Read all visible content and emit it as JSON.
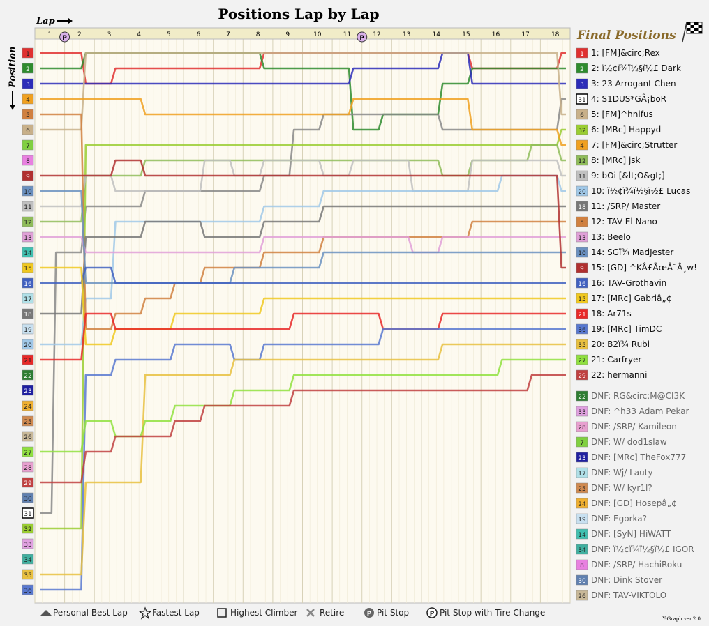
{
  "title": "Positions Lap by Lap",
  "lap_label": "Lap",
  "position_label": "Position",
  "final_positions_title": "Final Positions",
  "version": "Y-Graph ver.2.0",
  "chart_data": {
    "type": "line",
    "title": "Positions Lap by Lap",
    "xlabel": "Lap",
    "ylabel": "Position",
    "laps": [
      1,
      2,
      3,
      4,
      5,
      6,
      7,
      8,
      9,
      10,
      11,
      12,
      13,
      14,
      15,
      16,
      17,
      18
    ],
    "y_range": [
      1,
      36
    ],
    "position_labels": [
      "1",
      "2",
      "3",
      "4",
      "5",
      "6",
      "7",
      "8",
      "9",
      "10",
      "11",
      "12",
      "13",
      "14",
      "15",
      "16",
      "17",
      "18",
      "19",
      "20",
      "21",
      "22",
      "23",
      "24",
      "25",
      "26",
      "27",
      "28",
      "29",
      "30",
      "31",
      "32",
      "33",
      "34",
      "35",
      "36"
    ],
    "series": [
      {
        "id": 1,
        "name": "[FM]&circ;Rex",
        "color": "#e03030",
        "positions": [
          1,
          3,
          2,
          2,
          2,
          2,
          2,
          1,
          1,
          1,
          1,
          1,
          1,
          1,
          2,
          2,
          2,
          1
        ]
      },
      {
        "id": 2,
        "name": "ï½¢ï¾ï½§ï½£ Dark",
        "color": "#2e8b2e",
        "positions": [
          2,
          1,
          1,
          1,
          1,
          1,
          1,
          2,
          2,
          2,
          6,
          5,
          5,
          3,
          2,
          2,
          2,
          2
        ]
      },
      {
        "id": 3,
        "name": "23 Arrogant Chen",
        "color": "#2b2bb8",
        "positions": [
          3,
          3,
          3,
          3,
          3,
          3,
          3,
          3,
          3,
          3,
          2,
          2,
          2,
          1,
          3,
          3,
          3,
          3
        ]
      },
      {
        "id": 31,
        "name": "S1DUS*GÃ¡boR",
        "color": "#888888",
        "positions": [
          14,
          11,
          11,
          10,
          10,
          10,
          10,
          9,
          6,
          5,
          5,
          5,
          5,
          6,
          6,
          6,
          6,
          4
        ]
      },
      {
        "id": 6,
        "name": "[FM]^hnifus",
        "color": "#c8b08a",
        "positions": [
          6,
          1,
          1,
          1,
          1,
          1,
          1,
          1,
          1,
          1,
          1,
          1,
          1,
          1,
          1,
          1,
          1,
          5
        ]
      },
      {
        "id": 32,
        "name": "[MRc] Happyd",
        "color": "#9acd32",
        "positions": [
          32,
          7,
          7,
          7,
          7,
          7,
          7,
          7,
          7,
          7,
          7,
          7,
          7,
          7,
          7,
          7,
          7,
          6
        ]
      },
      {
        "id": 4,
        "name": "[FM]&circ;Strutter",
        "color": "#f0a020",
        "positions": [
          4,
          4,
          4,
          5,
          5,
          5,
          5,
          5,
          5,
          5,
          4,
          4,
          4,
          4,
          6,
          6,
          6,
          7
        ]
      },
      {
        "id": 12,
        "name": "[MRc] jsk",
        "color": "#8fbc5a",
        "positions": [
          12,
          9,
          9,
          8,
          8,
          8,
          8,
          8,
          8,
          8,
          8,
          8,
          8,
          9,
          8,
          8,
          7,
          8
        ]
      },
      {
        "id": 11,
        "name": "bOi [&lt;O&gt;]",
        "color": "#c0c0c0",
        "positions": [
          11,
          9,
          10,
          10,
          10,
          8,
          9,
          8,
          8,
          9,
          8,
          8,
          10,
          10,
          8,
          8,
          8,
          9
        ]
      },
      {
        "id": 20,
        "name": "ï½¢ï¾ï½§ï½£ Lucas",
        "color": "#a0c8e8",
        "positions": [
          20,
          17,
          12,
          12,
          12,
          12,
          12,
          11,
          11,
          10,
          10,
          10,
          10,
          10,
          10,
          9,
          9,
          10
        ]
      },
      {
        "id": 18,
        "name": "/SRP/ Master",
        "color": "#777777",
        "positions": [
          18,
          13,
          13,
          12,
          12,
          13,
          13,
          12,
          12,
          11,
          11,
          11,
          11,
          11,
          11,
          11,
          11,
          11
        ]
      },
      {
        "id": 5,
        "name": "TAV-El Nano",
        "color": "#d08040",
        "positions": [
          5,
          19,
          18,
          17,
          16,
          15,
          15,
          14,
          14,
          13,
          13,
          13,
          13,
          13,
          12,
          12,
          12,
          12
        ]
      },
      {
        "id": 13,
        "name": "Beelo",
        "color": "#e0a0d8",
        "positions": [
          13,
          14,
          14,
          14,
          14,
          14,
          14,
          13,
          13,
          13,
          13,
          13,
          14,
          13,
          13,
          13,
          13,
          13
        ]
      },
      {
        "id": 10,
        "name": "SGï¾ MadJester",
        "color": "#6a90c0",
        "positions": [
          10,
          16,
          16,
          16,
          16,
          16,
          15,
          15,
          15,
          14,
          14,
          14,
          14,
          14,
          14,
          14,
          14,
          14
        ]
      },
      {
        "id": 9,
        "name": "[GD] ^KÂ£ÃœÂ¨Â¸w!",
        "color": "#b03030",
        "positions": [
          9,
          9,
          8,
          9,
          9,
          9,
          9,
          9,
          9,
          9,
          9,
          9,
          9,
          9,
          9,
          9,
          9,
          15
        ]
      },
      {
        "id": 16,
        "name": "TAV-Grothavin",
        "color": "#4060c0",
        "positions": [
          16,
          15,
          16,
          16,
          16,
          16,
          16,
          16,
          16,
          16,
          16,
          16,
          16,
          16,
          16,
          16,
          16,
          16
        ]
      },
      {
        "id": 15,
        "name": "[MRc] Gabriâ„¢",
        "color": "#f0c820",
        "positions": [
          15,
          20,
          19,
          19,
          18,
          18,
          18,
          17,
          17,
          17,
          17,
          17,
          17,
          17,
          17,
          17,
          17,
          17
        ]
      },
      {
        "id": 21,
        "name": "Ar71s",
        "color": "#e82828",
        "positions": [
          21,
          18,
          19,
          19,
          19,
          19,
          19,
          19,
          18,
          18,
          18,
          19,
          19,
          18,
          18,
          18,
          18,
          18
        ]
      },
      {
        "id": 36,
        "name": "[MRc] TimDC",
        "color": "#5878d0",
        "positions": [
          36,
          22,
          21,
          21,
          20,
          20,
          21,
          20,
          20,
          20,
          20,
          19,
          19,
          19,
          19,
          19,
          19,
          19
        ]
      },
      {
        "id": 35,
        "name": "B2ï¾ Rubi",
        "color": "#e8c040",
        "positions": [
          35,
          29,
          29,
          22,
          22,
          22,
          21,
          21,
          21,
          21,
          21,
          21,
          21,
          20,
          20,
          20,
          20,
          20
        ]
      },
      {
        "id": 27,
        "name": "Carfryer",
        "color": "#90e040",
        "positions": [
          27,
          25,
          26,
          25,
          24,
          24,
          23,
          23,
          22,
          22,
          22,
          22,
          22,
          22,
          22,
          21,
          21,
          21
        ]
      },
      {
        "id": 29,
        "name": "hermanni",
        "color": "#c04040",
        "positions": [
          29,
          27,
          26,
          26,
          25,
          24,
          24,
          24,
          23,
          23,
          23,
          23,
          23,
          23,
          23,
          23,
          22,
          22
        ]
      }
    ],
    "pit_stop_laps_marked": [
      1,
      11
    ]
  },
  "final_positions": [
    {
      "badge": "1",
      "badge_color": "#e03030",
      "text": "1: [FM]&circ;Rex"
    },
    {
      "badge": "2",
      "badge_color": "#2e8b2e",
      "text": "2: ï½¢ï¾ï½§ï½£ Dark"
    },
    {
      "badge": "3",
      "badge_color": "#2b2bb8",
      "text": "3: 23 Arrogant Chen"
    },
    {
      "badge": "31",
      "badge_color": "#ffffff",
      "text": "4: S1DUS*GÃ¡boR"
    },
    {
      "badge": "6",
      "badge_color": "#c8b08a",
      "text": "5: [FM]^hnifus"
    },
    {
      "badge": "32",
      "badge_color": "#9acd32",
      "text": "6: [MRc] Happyd"
    },
    {
      "badge": "4",
      "badge_color": "#f0a020",
      "text": "7: [FM]&circ;Strutter"
    },
    {
      "badge": "12",
      "badge_color": "#8fbc5a",
      "text": "8: [MRc] jsk"
    },
    {
      "badge": "11",
      "badge_color": "#c0c0c0",
      "text": "9: bOi [&lt;O&gt;]"
    },
    {
      "badge": "20",
      "badge_color": "#a0c8e8",
      "text": "10: ï½¢ï¾ï½§ï½£ Lucas"
    },
    {
      "badge": "18",
      "badge_color": "#777777",
      "text": "11: /SRP/ Master"
    },
    {
      "badge": "5",
      "badge_color": "#d08040",
      "text": "12: TAV-El Nano"
    },
    {
      "badge": "13",
      "badge_color": "#e0a0d8",
      "text": "13: Beelo"
    },
    {
      "badge": "10",
      "badge_color": "#6a90c0",
      "text": "14: SGï¾ MadJester"
    },
    {
      "badge": "9",
      "badge_color": "#b03030",
      "text": "15: [GD] ^KÂ£ÃœÂ¨Â¸w!"
    },
    {
      "badge": "16",
      "badge_color": "#4060c0",
      "text": "16: TAV-Grothavin"
    },
    {
      "badge": "15",
      "badge_color": "#f0c820",
      "text": "17: [MRc] Gabriâ„¢"
    },
    {
      "badge": "21",
      "badge_color": "#e82828",
      "text": "18: Ar71s"
    },
    {
      "badge": "36",
      "badge_color": "#5878d0",
      "text": "19: [MRc] TimDC"
    },
    {
      "badge": "35",
      "badge_color": "#e8c040",
      "text": "20: B2ï¾ Rubi"
    },
    {
      "badge": "27",
      "badge_color": "#90e040",
      "text": "21: Carfryer"
    },
    {
      "badge": "29",
      "badge_color": "#c04040",
      "text": "22: hermanni"
    }
  ],
  "dnf": [
    {
      "badge": "22",
      "badge_color": "#2e7d32",
      "text": "DNF: RG&circ;M@CI3K"
    },
    {
      "badge": "33",
      "badge_color": "#e0a0e0",
      "text": "DNF: ^h33 Adam Pekar"
    },
    {
      "badge": "28",
      "badge_color": "#e8a0d0",
      "text": "DNF: /SRP/ Kamileon"
    },
    {
      "badge": "7",
      "badge_color": "#80d040",
      "text": "DNF: W/ dod1slaw"
    },
    {
      "badge": "23",
      "badge_color": "#2020a0",
      "text": "DNF: [MRc] TheFox777"
    },
    {
      "badge": "17",
      "badge_color": "#b0e0e8",
      "text": "DNF: Wj/ Lauty"
    },
    {
      "badge": "25",
      "badge_color": "#d08a50",
      "text": "DNF: W/ kyr1l?"
    },
    {
      "badge": "24",
      "badge_color": "#f0b030",
      "text": "DNF: [GD] Hosepâ„¢"
    },
    {
      "badge": "19",
      "badge_color": "#c8e0f0",
      "text": "DNF: Egorka?"
    },
    {
      "badge": "14",
      "badge_color": "#40c0b0",
      "text": "DNF: [SyN] HiWATT"
    },
    {
      "badge": "34",
      "badge_color": "#40b0a0",
      "text": "DNF: ï½¢ï¾ï½§ï½£ IGOR"
    },
    {
      "badge": "8",
      "badge_color": "#e880e0",
      "text": "DNF: /SRP/ HachiRoku"
    },
    {
      "badge": "30",
      "badge_color": "#6080b0",
      "text": "DNF: Dink Stover"
    },
    {
      "badge": "26",
      "badge_color": "#c8b898",
      "text": "DNF: TAV-VIKTOLO"
    }
  ],
  "bottom_legend": [
    {
      "icon": "triangle-icon",
      "text": "Personal Best Lap"
    },
    {
      "icon": "star-icon",
      "text": "Fastest Lap"
    },
    {
      "icon": "square-icon",
      "text": "Highest Climber"
    },
    {
      "icon": "x-icon",
      "text": "Retire"
    },
    {
      "icon": "pit-icon",
      "text": "Pit Stop"
    },
    {
      "icon": "pit-tire-icon",
      "text": "Pit Stop with Tire Change"
    }
  ],
  "pit_letter": "P",
  "left_badge_colors": [
    "#e03030",
    "#2e8b2e",
    "#2b2bb8",
    "#f0a020",
    "#d08040",
    "#c8b08a",
    "#80d040",
    "#e880e0",
    "#b03030",
    "#6a90c0",
    "#c0c0c0",
    "#8fbc5a",
    "#e0a0d8",
    "#40c0b0",
    "#f0c820",
    "#4060c0",
    "#b0e0e8",
    "#777777",
    "#c8e0f0",
    "#a0c8e8",
    "#e82828",
    "#2e7d32",
    "#2020a0",
    "#f0b030",
    "#d08a50",
    "#c8b898",
    "#90e040",
    "#e8a0d0",
    "#c04040",
    "#6080b0",
    "#ffffff",
    "#9acd32",
    "#e0a0e0",
    "#40b0a0",
    "#e8c040",
    "#5878d0"
  ]
}
